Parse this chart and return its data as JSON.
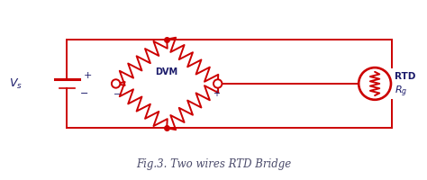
{
  "title": "Fig.3. Two wires RTD Bridge",
  "title_color": "#4a4a6a",
  "circuit_color": "#cc0000",
  "text_color": "#1a1a6a",
  "bg_color": "#ffffff",
  "dvm_label": "DVM",
  "rtd_label": "RTD",
  "rg_label": "R_g",
  "figw": 4.74,
  "figh": 2.0,
  "dpi": 100
}
